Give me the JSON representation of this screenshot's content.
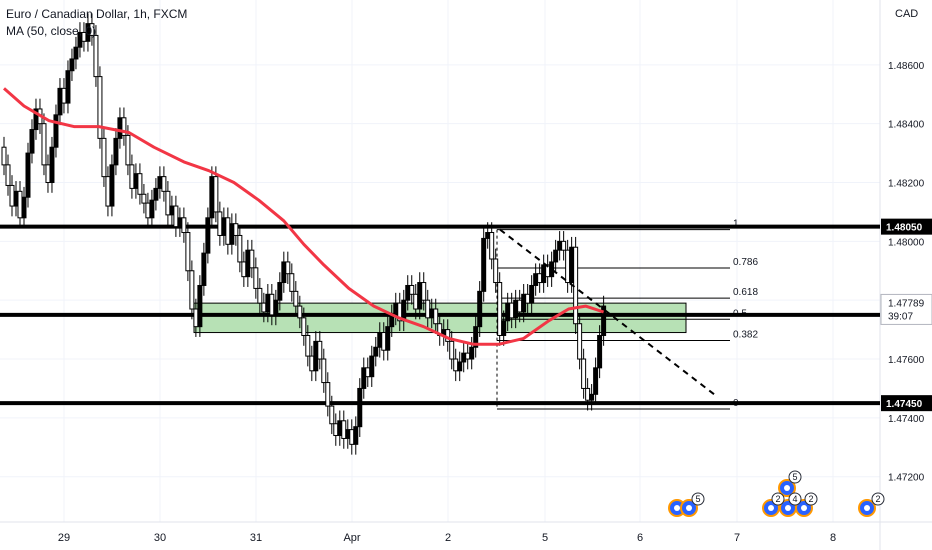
{
  "header": {
    "symbol_title": "Euro / Canadian Dollar, 1h, FXCM",
    "indicator_label": "MA (50, close, 0)",
    "currency": "CAD"
  },
  "colors": {
    "up_candle": "#000000",
    "down_candle": "#ffffff",
    "ma_line": "#f23645",
    "zone_fill": "#b7e1b5",
    "zone_border": "#000000",
    "level_line": "#000000",
    "fib_line": "#000000",
    "grid": "#f0f3fa",
    "axis_text": "#131722",
    "event_blue": "#2962ff",
    "event_orange": "#ff9800"
  },
  "chart_data": {
    "type": "candlestick",
    "title": "Euro / Canadian Dollar, 1h, FXCM",
    "ylim": [
      1.4708,
      1.488
    ],
    "y_ticks": [
      "1.48600",
      "1.48400",
      "1.48200",
      "1.48000",
      "1.47800",
      "1.47600",
      "1.47400",
      "1.47200"
    ],
    "x_ticks": [
      "29",
      "30",
      "31",
      "Apr",
      "2",
      "5",
      "6",
      "7",
      "8"
    ],
    "grid": true,
    "horizontal_levels": [
      {
        "value": 1.4805,
        "label": "1.48050"
      },
      {
        "value": 1.4775,
        "label": "1.47750"
      },
      {
        "value": 1.4745,
        "label": "1.47450"
      }
    ],
    "price_tag": {
      "value": 1.47789,
      "label": "1.47789",
      "countdown": "39:07"
    },
    "demand_zone": {
      "top": 1.4779,
      "bottom": 1.4769
    },
    "fibonacci": {
      "high": 1.4804,
      "low": 1.4743,
      "levels": [
        {
          "ratio": 1,
          "label": "1"
        },
        {
          "ratio": 0.786,
          "label": "0.786"
        },
        {
          "ratio": 0.618,
          "label": "0.618"
        },
        {
          "ratio": 0.5,
          "label": "0.5"
        },
        {
          "ratio": 0.382,
          "label": "0.382"
        },
        {
          "ratio": 0,
          "label": "0"
        }
      ]
    },
    "trend_line": {
      "from_price": 1.4804,
      "to_price": 1.4747
    },
    "ma_series": [
      [
        0,
        1.4852
      ],
      [
        20,
        1.4846
      ],
      [
        45,
        1.4841
      ],
      [
        70,
        1.4839
      ],
      [
        95,
        1.4839
      ],
      [
        125,
        1.4837
      ],
      [
        150,
        1.4832
      ],
      [
        180,
        1.4827
      ],
      [
        205,
        1.4824
      ],
      [
        230,
        1.482
      ],
      [
        255,
        1.4814
      ],
      [
        280,
        1.4807
      ],
      [
        300,
        1.4799
      ],
      [
        320,
        1.4792
      ],
      [
        345,
        1.4784
      ],
      [
        370,
        1.4778
      ],
      [
        395,
        1.4774
      ],
      [
        420,
        1.4771
      ],
      [
        445,
        1.4767
      ],
      [
        470,
        1.4765
      ],
      [
        495,
        1.4765
      ],
      [
        520,
        1.4767
      ],
      [
        545,
        1.4773
      ],
      [
        565,
        1.4777
      ],
      [
        582,
        1.4778
      ],
      [
        600,
        1.4776
      ]
    ],
    "candles": [
      [
        0,
        1.4832,
        1.4826
      ],
      [
        4,
        1.4826,
        1.4819
      ],
      [
        8,
        1.4819,
        1.4812
      ],
      [
        12,
        1.4812,
        1.4817
      ],
      [
        16,
        1.4817,
        1.4808
      ],
      [
        20,
        1.4808,
        1.4815
      ],
      [
        24,
        1.4815,
        1.483
      ],
      [
        28,
        1.483,
        1.4838
      ],
      [
        32,
        1.4838,
        1.4845
      ],
      [
        36,
        1.4845,
        1.484
      ],
      [
        40,
        1.484,
        1.4826
      ],
      [
        44,
        1.4826,
        1.482
      ],
      [
        48,
        1.482,
        1.4832
      ],
      [
        52,
        1.4832,
        1.4843
      ],
      [
        56,
        1.4843,
        1.4852
      ],
      [
        60,
        1.4852,
        1.4847
      ],
      [
        64,
        1.4847,
        1.4858
      ],
      [
        68,
        1.4858,
        1.4862
      ],
      [
        72,
        1.4862,
        1.4866
      ],
      [
        76,
        1.4866,
        1.4871
      ],
      [
        80,
        1.4871,
        1.4868
      ],
      [
        84,
        1.4868,
        1.4874
      ],
      [
        88,
        1.4874,
        1.487
      ],
      [
        92,
        1.487,
        1.4856
      ],
      [
        96,
        1.4856,
        1.4835
      ],
      [
        100,
        1.4835,
        1.4822
      ],
      [
        104,
        1.4822,
        1.4812
      ],
      [
        108,
        1.4812,
        1.4826
      ],
      [
        112,
        1.4826,
        1.4835
      ],
      [
        116,
        1.4835,
        1.4842
      ],
      [
        120,
        1.4842,
        1.4836
      ],
      [
        124,
        1.4836,
        1.4826
      ],
      [
        128,
        1.4826,
        1.4818
      ],
      [
        132,
        1.4818,
        1.4823
      ],
      [
        136,
        1.4823,
        1.4816
      ],
      [
        140,
        1.4816,
        1.4813
      ],
      [
        144,
        1.4813,
        1.4808
      ],
      [
        148,
        1.4808,
        1.4814
      ],
      [
        152,
        1.4814,
        1.4818
      ],
      [
        156,
        1.4818,
        1.4822
      ],
      [
        160,
        1.4822,
        1.4817
      ],
      [
        164,
        1.4817,
        1.4809
      ],
      [
        168,
        1.4809,
        1.4812
      ],
      [
        172,
        1.4812,
        1.4805
      ],
      [
        176,
        1.4805,
        1.4808
      ],
      [
        180,
        1.4808,
        1.4803
      ],
      [
        184,
        1.4803,
        1.479
      ],
      [
        188,
        1.479,
        1.4777
      ],
      [
        192,
        1.4777,
        1.4771
      ],
      [
        196,
        1.4771,
        1.4785
      ],
      [
        200,
        1.4785,
        1.4796
      ],
      [
        204,
        1.4796,
        1.4808
      ],
      [
        208,
        1.4808,
        1.4822
      ],
      [
        212,
        1.4822,
        1.481
      ],
      [
        216,
        1.481,
        1.4802
      ],
      [
        220,
        1.4802,
        1.4808
      ],
      [
        224,
        1.4808,
        1.4799
      ],
      [
        228,
        1.4799,
        1.4806
      ],
      [
        232,
        1.4806,
        1.4802
      ],
      [
        236,
        1.4802,
        1.4793
      ],
      [
        240,
        1.4793,
        1.4788
      ],
      [
        244,
        1.4788,
        1.4797
      ],
      [
        248,
        1.4797,
        1.4791
      ],
      [
        252,
        1.4791,
        1.4784
      ],
      [
        256,
        1.4784,
        1.4779
      ],
      [
        260,
        1.4779,
        1.4776
      ],
      [
        264,
        1.4776,
        1.4782
      ],
      [
        268,
        1.4782,
        1.4775
      ],
      [
        272,
        1.4775,
        1.478
      ],
      [
        276,
        1.478,
        1.4786
      ],
      [
        280,
        1.4786,
        1.4793
      ],
      [
        284,
        1.4793,
        1.4789
      ],
      [
        288,
        1.4789,
        1.4783
      ],
      [
        292,
        1.4783,
        1.4778
      ],
      [
        296,
        1.4778,
        1.4774
      ],
      [
        300,
        1.4774,
        1.4768
      ],
      [
        304,
        1.4768,
        1.4761
      ],
      [
        308,
        1.4761,
        1.4756
      ],
      [
        312,
        1.4756,
        1.4766
      ],
      [
        316,
        1.4766,
        1.476
      ],
      [
        320,
        1.476,
        1.4752
      ],
      [
        324,
        1.4752,
        1.4744
      ],
      [
        328,
        1.4744,
        1.4738
      ],
      [
        332,
        1.4738,
        1.4734
      ],
      [
        336,
        1.4734,
        1.4739
      ],
      [
        340,
        1.4739,
        1.4733
      ],
      [
        344,
        1.4733,
        1.4736
      ],
      [
        348,
        1.4736,
        1.4731
      ],
      [
        352,
        1.4731,
        1.4737
      ],
      [
        356,
        1.4737,
        1.475
      ],
      [
        360,
        1.475,
        1.4757
      ],
      [
        364,
        1.4757,
        1.4754
      ],
      [
        368,
        1.4754,
        1.4761
      ],
      [
        372,
        1.4761,
        1.4764
      ],
      [
        376,
        1.4764,
        1.4769
      ],
      [
        380,
        1.4769,
        1.4763
      ],
      [
        384,
        1.4763,
        1.4771
      ],
      [
        388,
        1.4771,
        1.4775
      ],
      [
        392,
        1.4775,
        1.4779
      ],
      [
        396,
        1.4779,
        1.4773
      ],
      [
        400,
        1.4773,
        1.478
      ],
      [
        404,
        1.478,
        1.4785
      ],
      [
        408,
        1.4785,
        1.4782
      ],
      [
        412,
        1.4782,
        1.4777
      ],
      [
        416,
        1.4777,
        1.4786
      ],
      [
        420,
        1.4786,
        1.478
      ],
      [
        424,
        1.478,
        1.4774
      ],
      [
        428,
        1.4774,
        1.4777
      ],
      [
        432,
        1.4777,
        1.4772
      ],
      [
        436,
        1.4772,
        1.4768
      ],
      [
        440,
        1.4768,
        1.477
      ],
      [
        444,
        1.477,
        1.4766
      ],
      [
        448,
        1.4766,
        1.476
      ],
      [
        452,
        1.476,
        1.4756
      ],
      [
        456,
        1.4756,
        1.4759
      ],
      [
        460,
        1.4759,
        1.4762
      ],
      [
        464,
        1.4762,
        1.476
      ],
      [
        468,
        1.476,
        1.4764
      ],
      [
        472,
        1.4764,
        1.4771
      ],
      [
        476,
        1.4771,
        1.4783
      ],
      [
        480,
        1.4783,
        1.4801
      ],
      [
        484,
        1.4801,
        1.4803
      ],
      [
        488,
        1.4803,
        1.4794
      ],
      [
        492,
        1.4794,
        1.4786
      ],
      [
        496,
        1.4786,
        1.4768
      ],
      [
        500,
        1.4768,
        1.4773
      ],
      [
        504,
        1.4773,
        1.4779
      ],
      [
        508,
        1.4779,
        1.4774
      ],
      [
        512,
        1.4774,
        1.478
      ],
      [
        516,
        1.478,
        1.4776
      ],
      [
        520,
        1.4776,
        1.4782
      ],
      [
        524,
        1.4782,
        1.4779
      ],
      [
        528,
        1.4779,
        1.4785
      ],
      [
        532,
        1.4785,
        1.4789
      ],
      [
        536,
        1.4789,
        1.4786
      ],
      [
        540,
        1.4786,
        1.4792
      ],
      [
        544,
        1.4792,
        1.4788
      ],
      [
        548,
        1.4788,
        1.4793
      ],
      [
        552,
        1.4793,
        1.4797
      ],
      [
        556,
        1.4797,
        1.48
      ],
      [
        560,
        1.48,
        1.4797
      ],
      [
        564,
        1.4797,
        1.4786
      ],
      [
        568,
        1.4786,
        1.4798
      ],
      [
        572,
        1.4798,
        1.4772
      ],
      [
        576,
        1.4772,
        1.476
      ],
      [
        580,
        1.476,
        1.475
      ],
      [
        584,
        1.475,
        1.4746
      ],
      [
        588,
        1.4746,
        1.4748
      ],
      [
        592,
        1.4748,
        1.4757
      ],
      [
        596,
        1.4757,
        1.4768
      ],
      [
        600,
        1.4768,
        1.4778
      ]
    ],
    "event_markers": [
      {
        "group": "left",
        "count": "5"
      },
      {
        "group": "middle",
        "count": "5"
      },
      {
        "group": "middle-low",
        "count": "2"
      },
      {
        "group": "middle-low",
        "count": "4"
      },
      {
        "group": "middle-low",
        "count": "2"
      },
      {
        "group": "right",
        "count": "2"
      }
    ]
  }
}
